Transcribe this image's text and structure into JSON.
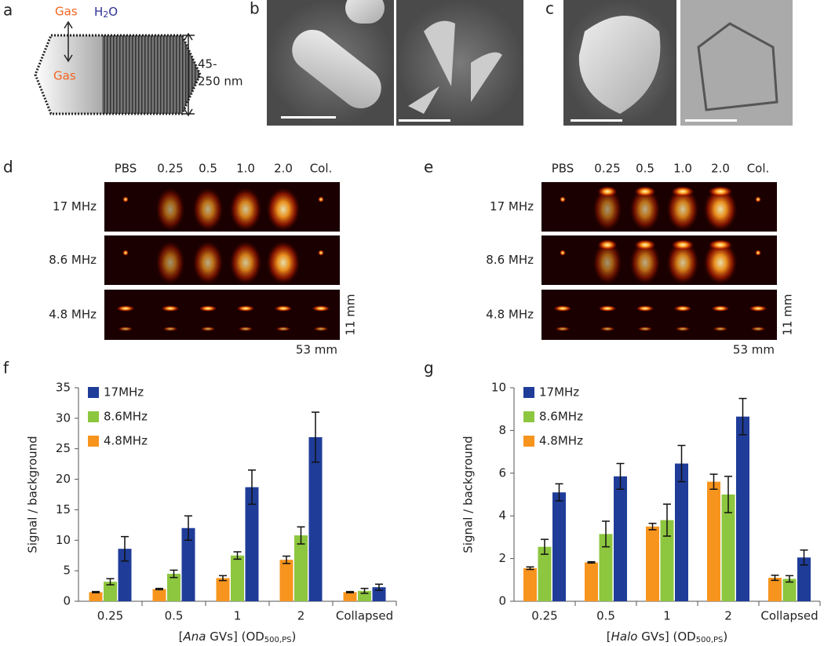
{
  "figure": {
    "panel_labels": [
      "a",
      "b",
      "c",
      "d",
      "e",
      "f",
      "g"
    ],
    "diagram": {
      "gas_top": "Gas",
      "h2o": {
        "text": "H",
        "sub": "2",
        "tail": "O"
      },
      "gas_bottom": "Gas",
      "size_line1": "45-",
      "size_line2": "250 nm"
    },
    "ultrasound": {
      "columns": [
        "PBS",
        "0.25",
        "0.5",
        "1.0",
        "2.0",
        "Col."
      ],
      "rows": [
        "17 MHz",
        "8.6 MHz",
        "4.8 MHz"
      ],
      "height_label": "11 mm",
      "width_label": "53 mm"
    }
  },
  "chart_data": [
    {
      "type": "bar",
      "y_label": "Signal / background",
      "x_label": {
        "prefix": "[",
        "italic": "Ana",
        "middle": " GVs] (OD",
        "sub": "500,PS",
        "suffix": ")"
      },
      "categories": [
        "0.25",
        "0.5",
        "1",
        "2",
        "Collapsed"
      ],
      "ylim": [
        0,
        35
      ],
      "yticks": [
        0,
        5,
        10,
        15,
        20,
        25,
        30,
        35
      ],
      "legend": "upper left",
      "grid": false,
      "series": [
        {
          "name": "4.8MHz",
          "color": "#f7941d",
          "values": [
            1.5,
            2.0,
            3.8,
            6.8,
            1.5
          ],
          "errors": [
            0.1,
            0.1,
            0.4,
            0.6,
            0.1
          ]
        },
        {
          "name": "8.6MHz",
          "color": "#8dc63f",
          "values": [
            3.2,
            4.5,
            7.5,
            10.8,
            1.7
          ],
          "errors": [
            0.5,
            0.6,
            0.6,
            1.4,
            0.4
          ]
        },
        {
          "name": "17MHz",
          "color": "#1f3c99",
          "values": [
            8.6,
            12.0,
            18.7,
            26.9,
            2.3
          ],
          "errors": [
            2.0,
            2.0,
            2.8,
            4.1,
            0.5
          ]
        }
      ]
    },
    {
      "type": "bar",
      "y_label": "Signal / background",
      "x_label": {
        "prefix": "[",
        "italic": "Halo",
        "middle": " GVs] (OD",
        "sub": "500,PS",
        "suffix": ")"
      },
      "categories": [
        "0.25",
        "0.5",
        "1",
        "2",
        "Collapsed"
      ],
      "ylim": [
        0,
        10
      ],
      "yticks": [
        0,
        2,
        4,
        6,
        8,
        10
      ],
      "legend": "upper left",
      "grid": false,
      "series": [
        {
          "name": "4.8MHz",
          "color": "#f7941d",
          "values": [
            1.55,
            1.82,
            3.5,
            5.6,
            1.1
          ],
          "errors": [
            0.06,
            0.03,
            0.15,
            0.35,
            0.12
          ]
        },
        {
          "name": "8.6MHz",
          "color": "#8dc63f",
          "values": [
            2.55,
            3.15,
            3.8,
            5.0,
            1.05
          ],
          "errors": [
            0.35,
            0.6,
            0.75,
            0.85,
            0.15
          ]
        },
        {
          "name": "17MHz",
          "color": "#1f3c99",
          "values": [
            5.1,
            5.85,
            6.45,
            8.65,
            2.05
          ],
          "errors": [
            0.4,
            0.6,
            0.85,
            0.85,
            0.35
          ]
        }
      ]
    }
  ]
}
